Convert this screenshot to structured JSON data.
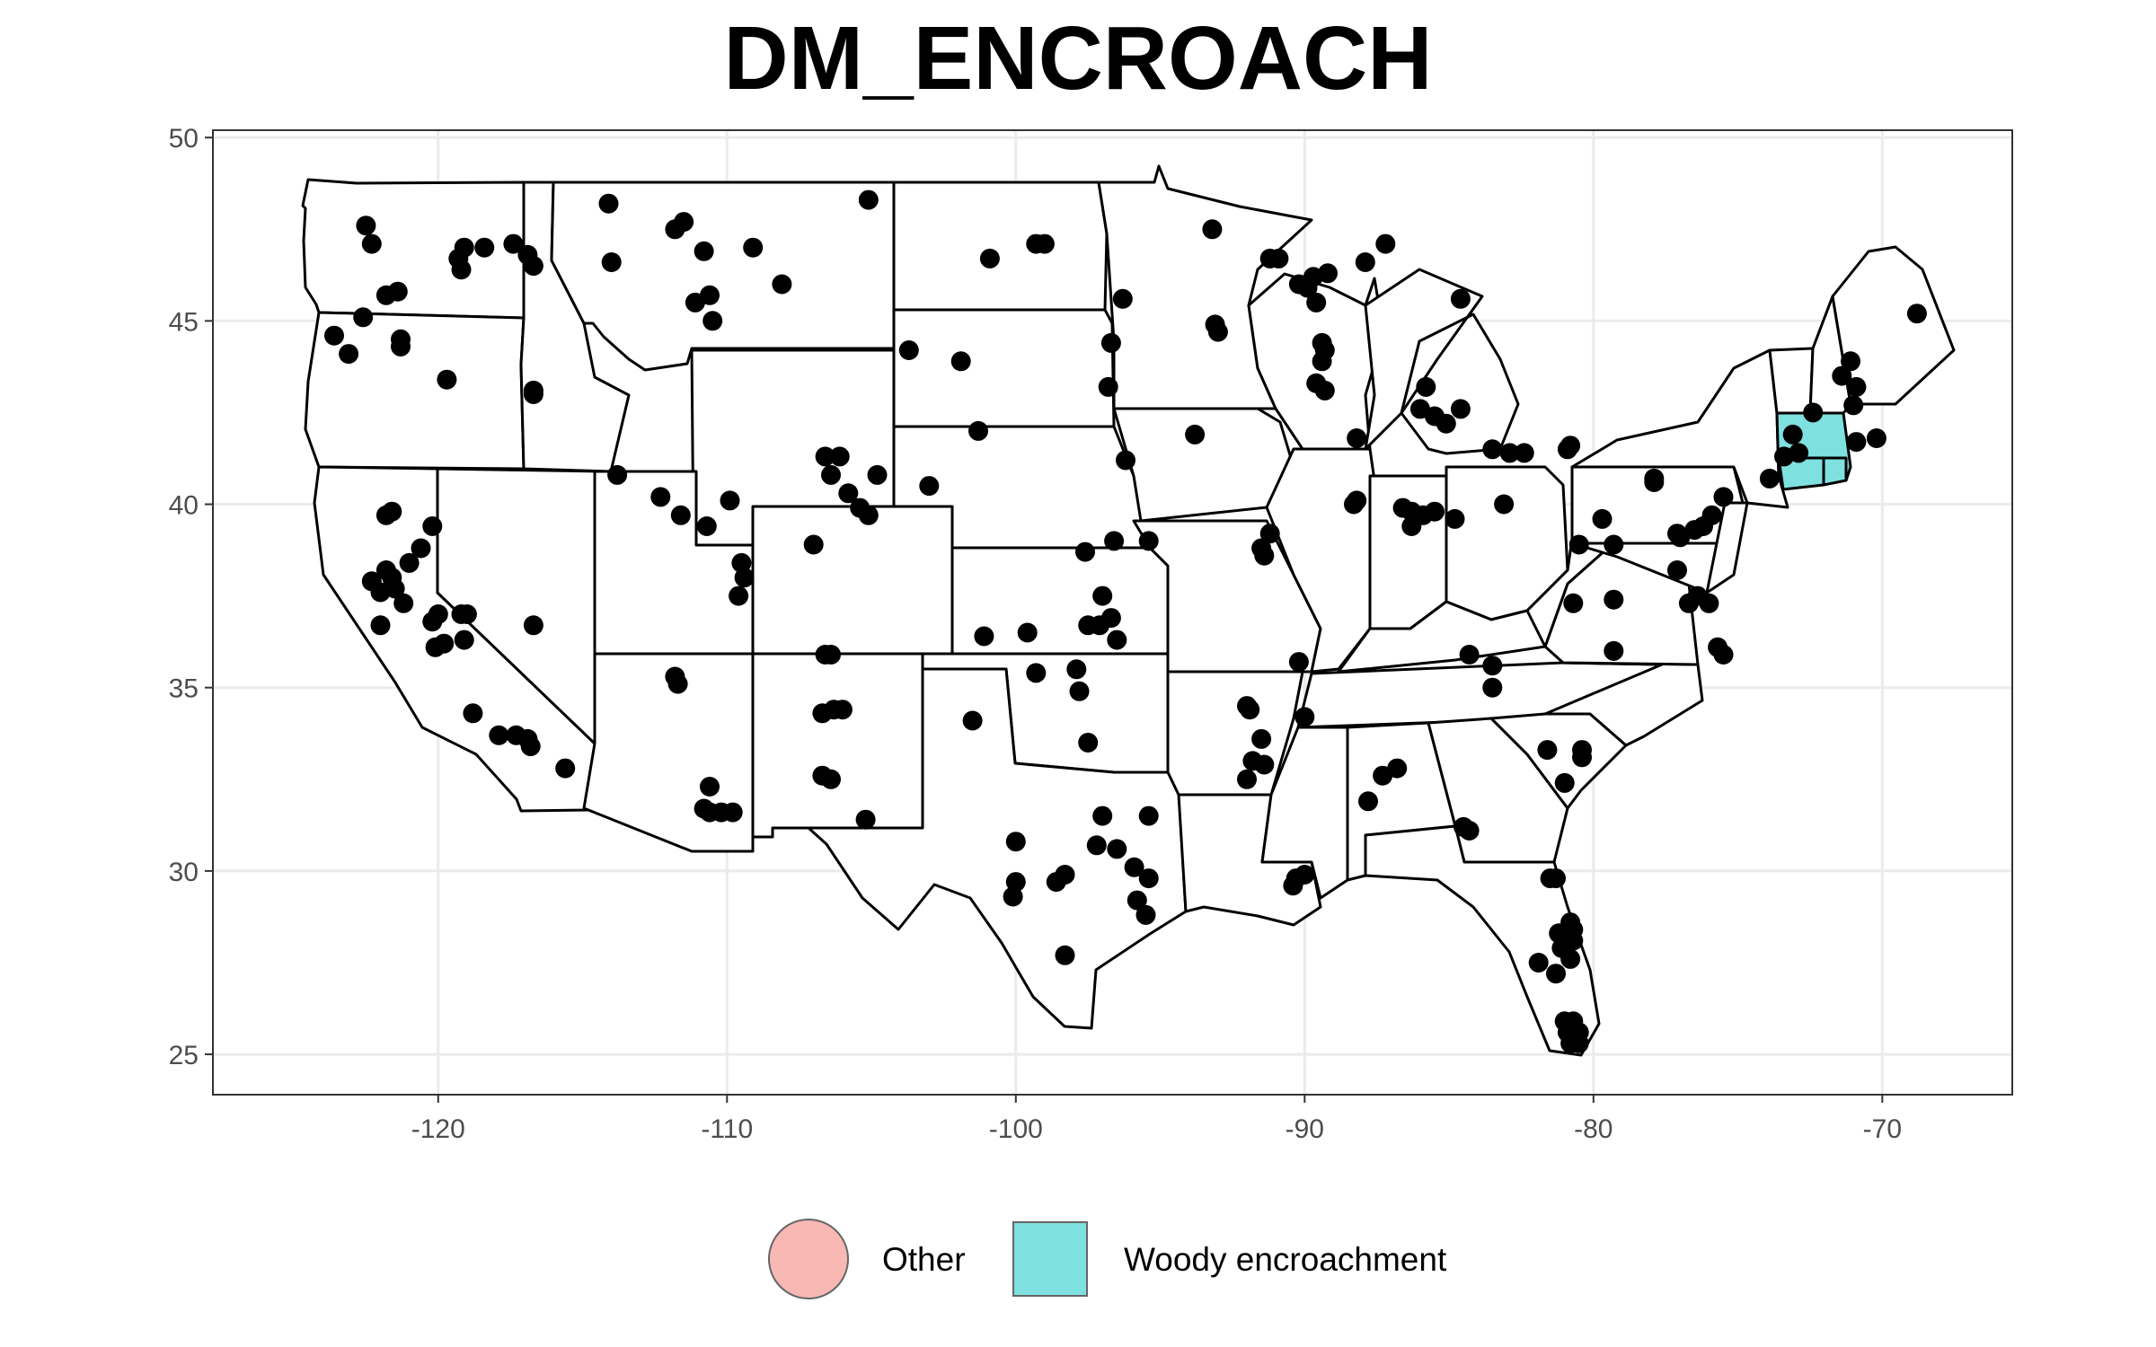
{
  "title": "DM_ENCROACH",
  "chart_data": {
    "type": "map",
    "title": "DM_ENCROACH",
    "xlim": [
      -127.8,
      -65.5
    ],
    "ylim": [
      23.9,
      50.2
    ],
    "x_ticks": [
      -120,
      -110,
      -100,
      -90,
      -80,
      -70
    ],
    "y_ticks": [
      25,
      30,
      35,
      40,
      45,
      50
    ],
    "grid": true,
    "legend_position": "bottom",
    "legend": [
      {
        "label": "Other",
        "color": "#f8b8b4",
        "shape": "circle"
      },
      {
        "label": "Woody encroachment",
        "color": "#7fe0e0",
        "shape": "square"
      }
    ],
    "highlighted_region": {
      "name": "Woody encroachment",
      "states": [
        "MA",
        "CT",
        "RI"
      ],
      "color": "#7fe0e0"
    },
    "points": [
      [
        -122.5,
        47.6
      ],
      [
        -122.3,
        47.1
      ],
      [
        -121.8,
        45.7
      ],
      [
        -121.4,
        45.8
      ],
      [
        -122.6,
        45.1
      ],
      [
        -123.6,
        44.6
      ],
      [
        -123.1,
        44.1
      ],
      [
        -121.3,
        44.5
      ],
      [
        -121.3,
        44.3
      ],
      [
        -119.7,
        43.4
      ],
      [
        -116.7,
        43.1
      ],
      [
        -116.7,
        43.0
      ],
      [
        -119.3,
        46.7
      ],
      [
        -119.1,
        47.0
      ],
      [
        -119.2,
        46.4
      ],
      [
        -118.4,
        47.0
      ],
      [
        -117.4,
        47.1
      ],
      [
        -116.9,
        46.8
      ],
      [
        -116.7,
        46.5
      ],
      [
        -114.1,
        48.2
      ],
      [
        -114.0,
        46.6
      ],
      [
        -111.8,
        47.5
      ],
      [
        -111.5,
        47.7
      ],
      [
        -110.8,
        46.9
      ],
      [
        -109.1,
        47.0
      ],
      [
        -111.1,
        45.5
      ],
      [
        -110.6,
        45.7
      ],
      [
        -110.5,
        45.0
      ],
      [
        -108.1,
        46.0
      ],
      [
        -105.1,
        48.3
      ],
      [
        -100.9,
        46.7
      ],
      [
        -99.3,
        47.1
      ],
      [
        -99.0,
        47.1
      ],
      [
        -96.3,
        45.6
      ],
      [
        -96.7,
        44.4
      ],
      [
        -96.8,
        43.2
      ],
      [
        -103.7,
        44.2
      ],
      [
        -101.9,
        43.9
      ],
      [
        -101.3,
        42.0
      ],
      [
        -96.2,
        41.2
      ],
      [
        -113.8,
        40.8
      ],
      [
        -112.3,
        40.2
      ],
      [
        -111.6,
        39.7
      ],
      [
        -110.7,
        39.4
      ],
      [
        -109.9,
        40.1
      ],
      [
        -109.5,
        38.4
      ],
      [
        -109.4,
        38.0
      ],
      [
        -109.6,
        37.5
      ],
      [
        -107.0,
        38.9
      ],
      [
        -106.6,
        41.3
      ],
      [
        -106.1,
        41.3
      ],
      [
        -106.4,
        40.8
      ],
      [
        -105.8,
        40.3
      ],
      [
        -105.4,
        39.9
      ],
      [
        -105.1,
        39.7
      ],
      [
        -104.8,
        40.8
      ],
      [
        -103.0,
        40.5
      ],
      [
        -101.1,
        36.4
      ],
      [
        -99.6,
        36.5
      ],
      [
        -99.3,
        35.4
      ],
      [
        -97.9,
        35.5
      ],
      [
        -97.8,
        34.9
      ],
      [
        -97.5,
        36.7
      ],
      [
        -97.1,
        36.7
      ],
      [
        -96.7,
        36.9
      ],
      [
        -96.5,
        36.3
      ],
      [
        -97.0,
        37.5
      ],
      [
        -97.6,
        38.7
      ],
      [
        -96.6,
        39.0
      ],
      [
        -95.4,
        39.0
      ],
      [
        -111.8,
        35.3
      ],
      [
        -111.7,
        35.1
      ],
      [
        -110.6,
        32.3
      ],
      [
        -110.8,
        31.7
      ],
      [
        -110.2,
        31.6
      ],
      [
        -109.8,
        31.6
      ],
      [
        -110.6,
        31.6
      ],
      [
        -106.6,
        35.9
      ],
      [
        -106.4,
        35.9
      ],
      [
        -106.7,
        34.3
      ],
      [
        -106.3,
        34.4
      ],
      [
        -106.0,
        34.4
      ],
      [
        -106.7,
        32.6
      ],
      [
        -106.4,
        32.5
      ],
      [
        -105.2,
        31.4
      ],
      [
        -101.5,
        34.1
      ],
      [
        -97.5,
        33.5
      ],
      [
        -100.0,
        30.8
      ],
      [
        -100.0,
        29.7
      ],
      [
        -100.1,
        29.3
      ],
      [
        -98.6,
        29.7
      ],
      [
        -98.3,
        29.9
      ],
      [
        -98.3,
        27.7
      ],
      [
        -97.0,
        31.5
      ],
      [
        -95.4,
        31.5
      ],
      [
        -96.5,
        30.6
      ],
      [
        -95.9,
        30.1
      ],
      [
        -95.4,
        29.8
      ],
      [
        -95.8,
        29.2
      ],
      [
        -95.5,
        28.8
      ],
      [
        -97.2,
        30.7
      ],
      [
        -121.8,
        39.7
      ],
      [
        -121.6,
        39.8
      ],
      [
        -120.2,
        39.4
      ],
      [
        -120.6,
        38.8
      ],
      [
        -121.0,
        38.4
      ],
      [
        -121.6,
        38.0
      ],
      [
        -121.8,
        38.2
      ],
      [
        -122.3,
        37.9
      ],
      [
        -122.0,
        37.6
      ],
      [
        -121.5,
        37.7
      ],
      [
        -121.2,
        37.3
      ],
      [
        -122.0,
        36.7
      ],
      [
        -120.2,
        36.8
      ],
      [
        -120.0,
        37.0
      ],
      [
        -119.2,
        37.0
      ],
      [
        -119.0,
        37.0
      ],
      [
        -119.1,
        36.3
      ],
      [
        -119.8,
        36.2
      ],
      [
        -120.1,
        36.1
      ],
      [
        -118.8,
        34.3
      ],
      [
        -117.9,
        33.7
      ],
      [
        -117.3,
        33.7
      ],
      [
        -116.9,
        33.6
      ],
      [
        -116.8,
        33.4
      ],
      [
        -115.6,
        32.8
      ],
      [
        -116.7,
        36.7
      ],
      [
        -93.1,
        44.9
      ],
      [
        -93.0,
        44.7
      ],
      [
        -93.2,
        47.5
      ],
      [
        -91.2,
        46.7
      ],
      [
        -90.9,
        46.7
      ],
      [
        -90.2,
        46.0
      ],
      [
        -89.9,
        45.9
      ],
      [
        -89.7,
        46.2
      ],
      [
        -89.2,
        46.3
      ],
      [
        -89.6,
        45.5
      ],
      [
        -89.3,
        44.2
      ],
      [
        -89.4,
        43.9
      ],
      [
        -89.4,
        44.4
      ],
      [
        -89.6,
        43.3
      ],
      [
        -89.3,
        43.1
      ],
      [
        -87.9,
        46.6
      ],
      [
        -87.2,
        47.1
      ],
      [
        -84.6,
        45.6
      ],
      [
        -85.8,
        43.2
      ],
      [
        -86.0,
        42.6
      ],
      [
        -85.5,
        42.4
      ],
      [
        -85.1,
        42.2
      ],
      [
        -84.6,
        42.6
      ],
      [
        -83.5,
        41.5
      ],
      [
        -82.9,
        41.4
      ],
      [
        -82.4,
        41.4
      ],
      [
        -80.8,
        41.6
      ],
      [
        -80.9,
        41.5
      ],
      [
        -93.8,
        41.9
      ],
      [
        -88.2,
        41.8
      ],
      [
        -88.3,
        40.0
      ],
      [
        -88.2,
        40.1
      ],
      [
        -86.6,
        39.9
      ],
      [
        -86.3,
        39.8
      ],
      [
        -86.3,
        39.4
      ],
      [
        -85.9,
        39.7
      ],
      [
        -85.5,
        39.8
      ],
      [
        -84.8,
        39.6
      ],
      [
        -83.1,
        40.0
      ],
      [
        -91.2,
        39.2
      ],
      [
        -91.5,
        38.8
      ],
      [
        -91.4,
        38.6
      ],
      [
        -90.2,
        35.7
      ],
      [
        -92.0,
        34.5
      ],
      [
        -91.9,
        34.4
      ],
      [
        -91.8,
        33.0
      ],
      [
        -91.5,
        33.6
      ],
      [
        -92.0,
        32.5
      ],
      [
        -91.4,
        32.9
      ],
      [
        -90.0,
        34.2
      ],
      [
        -87.8,
        31.9
      ],
      [
        -87.3,
        32.6
      ],
      [
        -86.8,
        32.8
      ],
      [
        -90.3,
        29.8
      ],
      [
        -90.4,
        29.6
      ],
      [
        -90.0,
        29.9
      ],
      [
        -84.5,
        31.2
      ],
      [
        -84.3,
        31.1
      ],
      [
        -84.3,
        35.9
      ],
      [
        -83.5,
        35.6
      ],
      [
        -83.5,
        35.0
      ],
      [
        -81.6,
        33.3
      ],
      [
        -80.4,
        33.1
      ],
      [
        -80.4,
        33.3
      ],
      [
        -81.0,
        32.4
      ],
      [
        -81.3,
        29.8
      ],
      [
        -81.5,
        29.8
      ],
      [
        -81.1,
        27.9
      ],
      [
        -81.2,
        28.3
      ],
      [
        -81.9,
        27.5
      ],
      [
        -81.3,
        27.2
      ],
      [
        -80.8,
        28.6
      ],
      [
        -80.8,
        27.6
      ],
      [
        -80.7,
        28.1
      ],
      [
        -80.7,
        28.4
      ],
      [
        -80.9,
        25.6
      ],
      [
        -81.0,
        25.9
      ],
      [
        -80.8,
        25.3
      ],
      [
        -80.5,
        25.3
      ],
      [
        -80.7,
        25.9
      ],
      [
        -80.5,
        25.6
      ],
      [
        -79.7,
        39.6
      ],
      [
        -80.5,
        38.9
      ],
      [
        -79.3,
        38.9
      ],
      [
        -80.7,
        37.3
      ],
      [
        -79.3,
        37.4
      ],
      [
        -79.3,
        36.0
      ],
      [
        -77.9,
        40.6
      ],
      [
        -77.9,
        40.7
      ],
      [
        -77.1,
        39.2
      ],
      [
        -77.0,
        39.1
      ],
      [
        -76.5,
        39.3
      ],
      [
        -76.2,
        39.4
      ],
      [
        -75.9,
        39.7
      ],
      [
        -75.5,
        40.2
      ],
      [
        -77.1,
        38.2
      ],
      [
        -76.7,
        37.3
      ],
      [
        -76.4,
        37.5
      ],
      [
        -76.0,
        37.3
      ],
      [
        -75.7,
        36.1
      ],
      [
        -75.5,
        35.9
      ],
      [
        -73.9,
        40.7
      ],
      [
        -73.4,
        41.3
      ],
      [
        -72.9,
        41.4
      ],
      [
        -73.1,
        41.9
      ],
      [
        -72.4,
        42.5
      ],
      [
        -71.4,
        43.5
      ],
      [
        -71.1,
        43.9
      ],
      [
        -70.9,
        43.2
      ],
      [
        -71.0,
        42.7
      ],
      [
        -70.9,
        41.7
      ],
      [
        -70.2,
        41.8
      ],
      [
        -68.8,
        45.2
      ]
    ]
  },
  "legend_items": [
    {
      "label": "Other"
    },
    {
      "label": "Woody encroachment"
    }
  ]
}
